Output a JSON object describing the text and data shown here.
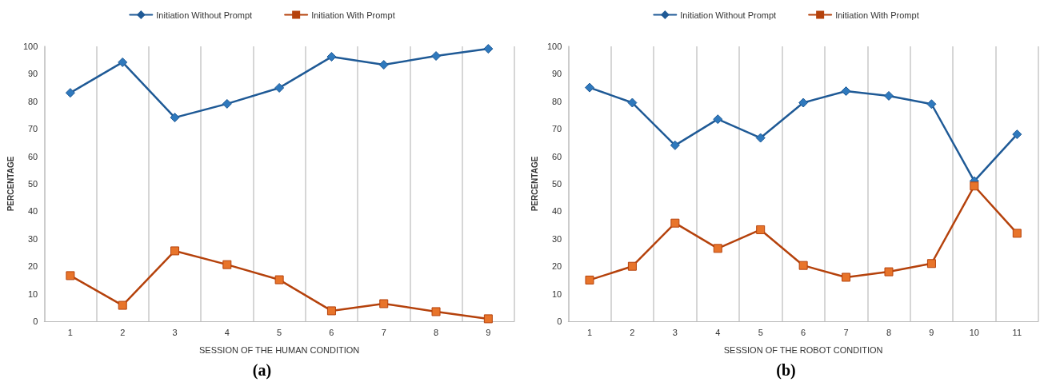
{
  "chart_data": [
    {
      "type": "line",
      "xlabel": "SESSION OF THE HUMAN CONDITION",
      "ylabel": "PERCENTAGE",
      "annotations": [
        "(a)"
      ],
      "categories": [
        "1",
        "2",
        "3",
        "4",
        "5",
        "6",
        "7",
        "8",
        "9"
      ],
      "series": [
        {
          "name": "Initiation Without Prompt",
          "color": "#1f5a96",
          "marker": "diamond",
          "values": [
            83.1,
            94.2,
            74.1,
            79.1,
            84.9,
            96.2,
            93.3,
            96.5,
            99.1
          ]
        },
        {
          "name": "Initiation With Prompt",
          "color": "#b5420c",
          "marker": "square",
          "values": [
            16.6,
            5.8,
            25.6,
            20.6,
            15.1,
            3.8,
            6.4,
            3.5,
            0.9
          ]
        }
      ],
      "ylim": [
        0,
        100
      ],
      "yticks": [
        0,
        10,
        20,
        30,
        40,
        50,
        60,
        70,
        80,
        90,
        100
      ],
      "grid": "x",
      "legend": "top",
      "line_style": "solid"
    },
    {
      "type": "line",
      "xlabel": "SESSION OF THE ROBOT CONDITION",
      "ylabel": "PERCENTAGE",
      "annotations": [
        "(b)"
      ],
      "categories": [
        "1",
        "2",
        "3",
        "4",
        "5",
        "6",
        "7",
        "8",
        "9",
        "10",
        "11"
      ],
      "series": [
        {
          "name": "Initiation Without Prompt",
          "color": "#1f5a96",
          "marker": "diamond",
          "values": [
            85,
            79.5,
            64,
            73.5,
            66.7,
            79.5,
            83.7,
            82,
            79,
            51,
            68
          ]
        },
        {
          "name": "Initiation With Prompt",
          "color": "#b5420c",
          "marker": "square",
          "values": [
            15,
            20,
            35.7,
            26.5,
            33.3,
            20.3,
            16,
            18,
            21,
            49.2,
            32
          ]
        }
      ],
      "ylim": [
        0,
        100
      ],
      "yticks": [
        0,
        10,
        20,
        30,
        40,
        50,
        60,
        70,
        80,
        90,
        100
      ],
      "grid": "x",
      "legend": "top",
      "line_style": "solid"
    }
  ]
}
